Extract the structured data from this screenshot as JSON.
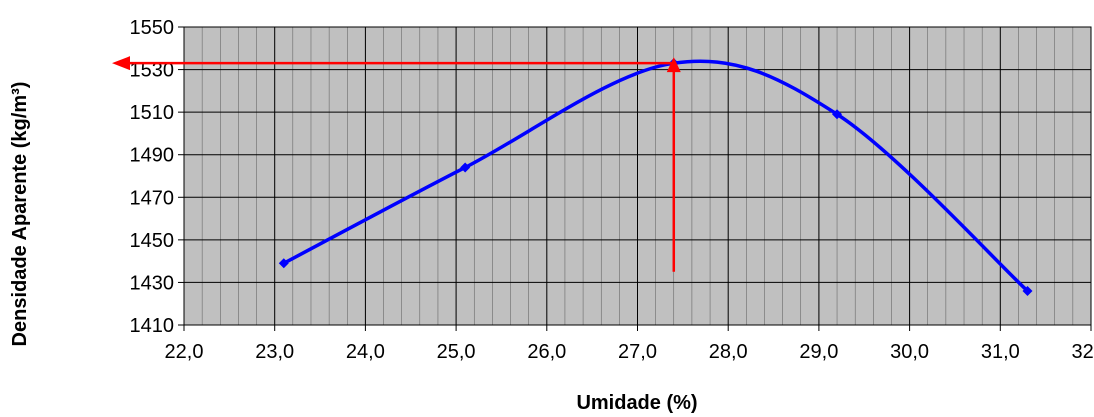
{
  "chart_data": {
    "type": "line",
    "title": "",
    "xlabel": "Umidade (%)",
    "ylabel": "Densidade Aparente (kg/m³)",
    "xlim": [
      22.0,
      32.0
    ],
    "ylim": [
      1410,
      1550
    ],
    "x_ticks": [
      22.0,
      23.0,
      24.0,
      25.0,
      26.0,
      27.0,
      28.0,
      29.0,
      30.0,
      31.0,
      32.0
    ],
    "x_tick_labels": [
      "22,0",
      "23,0",
      "24,0",
      "25,0",
      "26,0",
      "27,0",
      "28,0",
      "29,0",
      "30,0",
      "31,0",
      "32,0"
    ],
    "y_ticks": [
      1410,
      1430,
      1450,
      1470,
      1490,
      1510,
      1530,
      1550
    ],
    "y_tick_labels": [
      "1410",
      "1430",
      "1450",
      "1470",
      "1490",
      "1510",
      "1530",
      "1550"
    ],
    "grid": true,
    "minor_x_step": 0.2,
    "background_color": "#c0c0c0",
    "series": [
      {
        "x": [
          23.1,
          25.1,
          27.4,
          29.2,
          31.3
        ],
        "y": [
          1439,
          1484,
          1533,
          1509,
          1426
        ],
        "color": "#0000ff",
        "marker": "diamond"
      }
    ],
    "annotations": {
      "optimum_x": 27.4,
      "optimum_y": 1533,
      "vertical_from_y": 1435,
      "color": "#ff0000"
    }
  }
}
